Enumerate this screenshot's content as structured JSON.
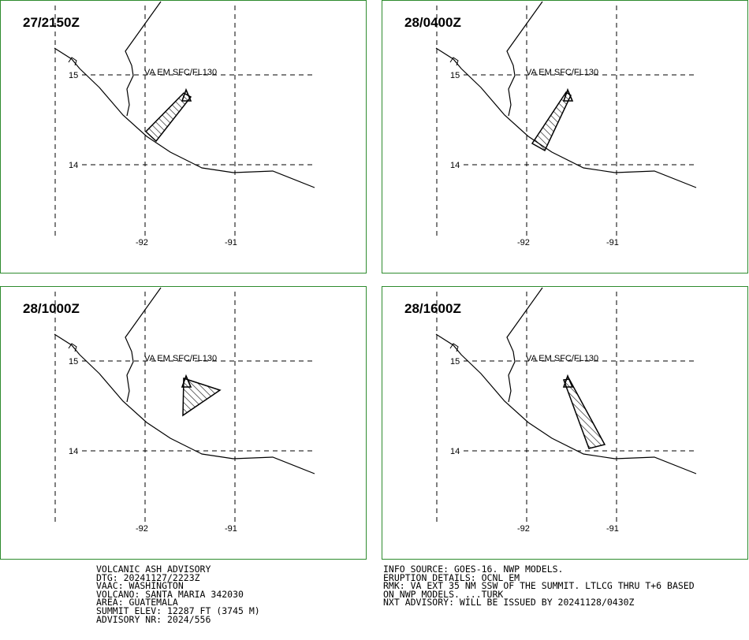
{
  "panels": [
    {
      "time": "27/2150Z",
      "annotation": "VA EM SFC/FL130"
    },
    {
      "time": "28/0400Z",
      "annotation": "VA EM SFC/FL130"
    },
    {
      "time": "28/1000Z",
      "annotation": "VA EM SFC/FL130"
    },
    {
      "time": "28/1600Z",
      "annotation": "VA EM SFC/FL130"
    }
  ],
  "lat_labels": [
    "15",
    "14"
  ],
  "lon_labels": [
    "-92",
    "-91"
  ],
  "advisory_left": [
    "VOLCANIC ASH ADVISORY",
    "DTG: 20241127/2223Z",
    "VAAC: WASHINGTON",
    "VOLCANO: SANTA MARIA 342030",
    "AREA: GUATEMALA",
    "SUMMIT ELEV: 12287 FT (3745 M)",
    "ADVISORY NR: 2024/556"
  ],
  "advisory_right": [
    "INFO SOURCE: GOES-16. NWP MODELS.",
    "ERUPTION DETAILS: OCNL EM",
    "RMK: VA EXT 35 NM SSW OF THE SUMMIT. LTLCG THRU T+6 BASED",
    "ON NWP MODELS. ...TURK",
    "NXT ADVISORY: WILL BE ISSUED BY 20241128/0430Z"
  ],
  "colors": {
    "panel_border": "#2e8b2e",
    "lines": "#000000"
  },
  "volcano_marker_icon": "triangle-icon"
}
